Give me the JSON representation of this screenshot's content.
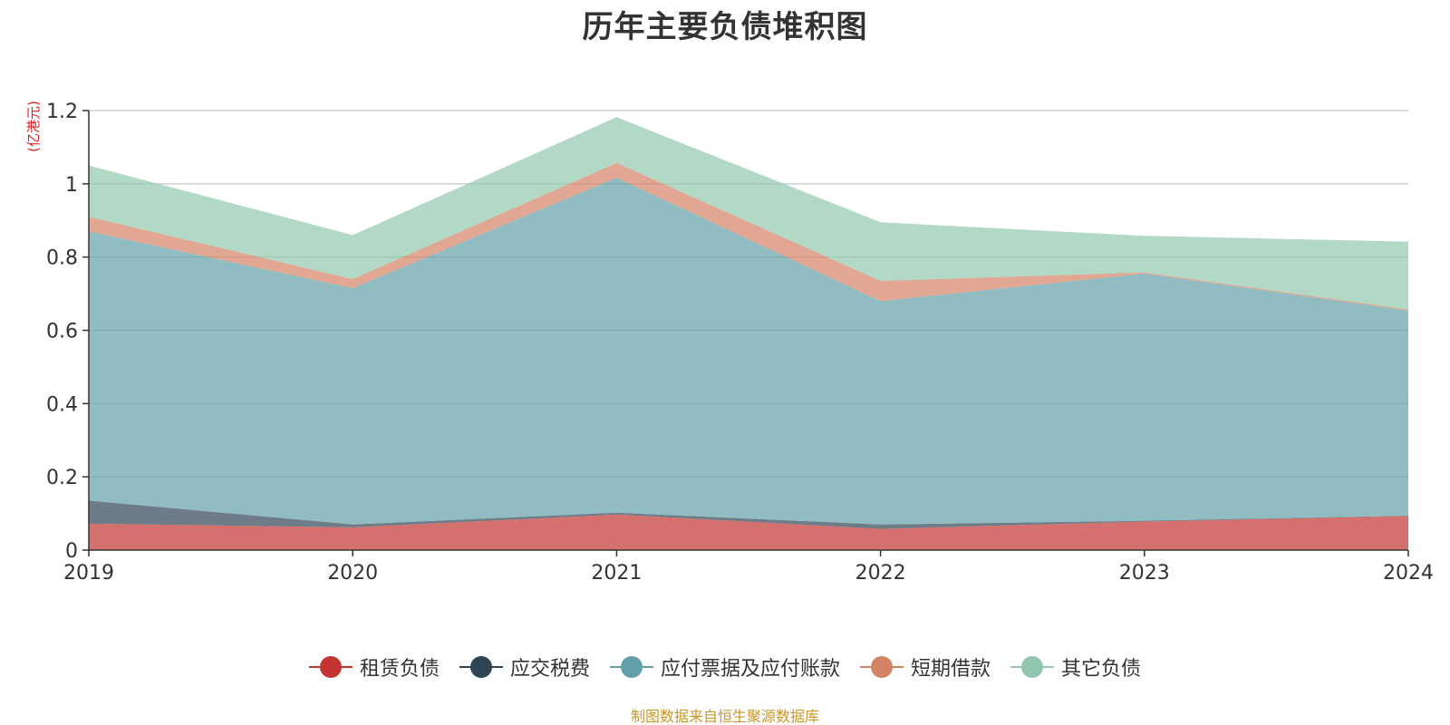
{
  "title": "历年主要负债堆积图",
  "source": "制图数据来自恒生聚源数据库",
  "chart_data": {
    "type": "area",
    "stacked": true,
    "title": "历年主要负债堆积图",
    "ylabel": "(亿港元)",
    "xlabel": "",
    "x": [
      "2019",
      "2020",
      "2021",
      "2022",
      "2023",
      "2024"
    ],
    "ylim": [
      0,
      1.2
    ],
    "yticks": [
      0,
      0.2,
      0.4,
      0.6,
      0.8,
      1,
      1.2
    ],
    "ytick_labels": [
      "0",
      "0.2",
      "0.4",
      "0.6",
      "0.8",
      "1",
      "1.2"
    ],
    "grid": true,
    "legend_position": "bottom-center",
    "series": [
      {
        "name": "租赁负债",
        "color": "#c23531",
        "values": [
          0.072,
          0.062,
          0.097,
          0.058,
          0.078,
          0.093
        ]
      },
      {
        "name": "应交税费",
        "color": "#2f4554",
        "values": [
          0.063,
          0.008,
          0.005,
          0.012,
          0.002,
          0.001
        ]
      },
      {
        "name": "应付票据及应付账款",
        "color": "#61a0a8",
        "values": [
          0.735,
          0.645,
          0.915,
          0.61,
          0.675,
          0.56
        ]
      },
      {
        "name": "短期借款",
        "color": "#d48265",
        "values": [
          0.04,
          0.025,
          0.04,
          0.055,
          0.003,
          0.003
        ]
      },
      {
        "name": "其它负债",
        "color": "#91c7ae",
        "values": [
          0.14,
          0.12,
          0.125,
          0.16,
          0.1,
          0.185
        ]
      }
    ]
  }
}
